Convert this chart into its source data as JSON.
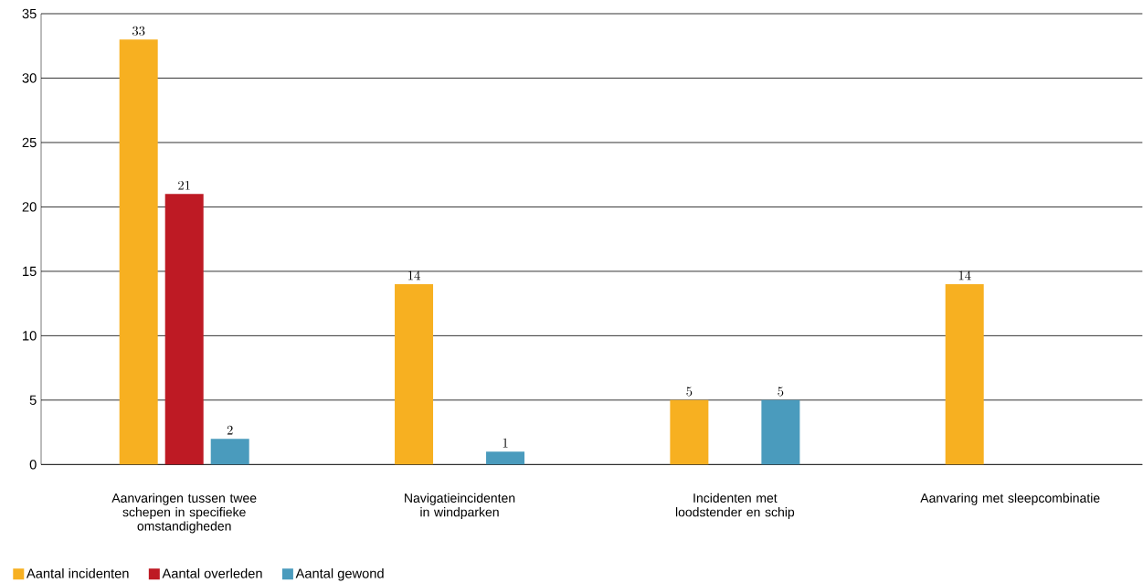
{
  "chart_data": {
    "type": "bar",
    "categories": [
      "Aanvaringen tussen twee schepen in specifieke omstandigheden",
      "Navigatieincidenten in windparken",
      "Incidenten met loodstender en schip",
      "Aanvaring met sleepcombinatie"
    ],
    "series": [
      {
        "name": "Aantal incidenten",
        "color": "#f7b021",
        "values": [
          33,
          14,
          5,
          14
        ]
      },
      {
        "name": "Aantal overleden",
        "color": "#be1a24",
        "values": [
          21,
          null,
          null,
          null
        ]
      },
      {
        "name": "Aantal gewond",
        "color": "#4a9bbd",
        "values": [
          2,
          1,
          5,
          null
        ]
      }
    ],
    "ylim": [
      0,
      35
    ],
    "yticks": [
      0,
      5,
      10,
      15,
      20,
      25,
      30,
      35
    ],
    "grid": "y",
    "legend": "bottom left",
    "data_labels": true
  }
}
